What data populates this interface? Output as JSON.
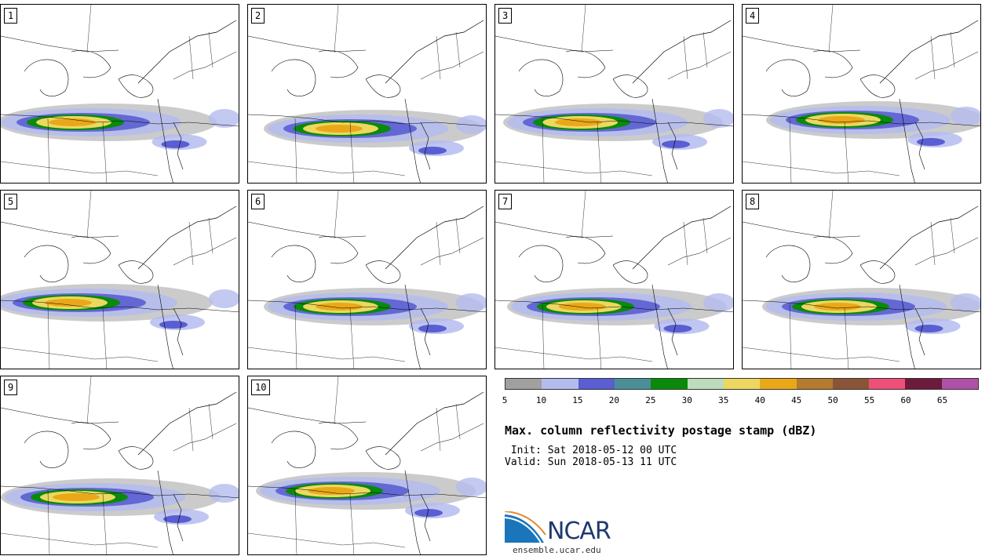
{
  "panels": [
    {
      "label": "1"
    },
    {
      "label": "2"
    },
    {
      "label": "3"
    },
    {
      "label": "4"
    },
    {
      "label": "5"
    },
    {
      "label": "6"
    },
    {
      "label": "7"
    },
    {
      "label": "8"
    },
    {
      "label": "9"
    },
    {
      "label": "10"
    }
  ],
  "colorbar": {
    "colors": [
      "#a0a0a0",
      "#b4bcee",
      "#5a5ed2",
      "#4a8e98",
      "#0a8a0a",
      "#bcdcbc",
      "#ecd860",
      "#eaa818",
      "#b47a2e",
      "#8a5438",
      "#ee5078",
      "#6e1a3c",
      "#b050a8"
    ],
    "ticks": [
      "5",
      "10",
      "15",
      "20",
      "25",
      "30",
      "35",
      "40",
      "45",
      "50",
      "55",
      "60",
      "65"
    ]
  },
  "title": "Max. column reflectivity postage stamp (dBZ)",
  "init_line": " Init: Sat 2018-05-12 00 UTC",
  "valid_line": "Valid: Sun 2018-05-13 11 UTC",
  "logo_text": "NCAR",
  "logo_url": "ensemble.ucar.edu"
}
